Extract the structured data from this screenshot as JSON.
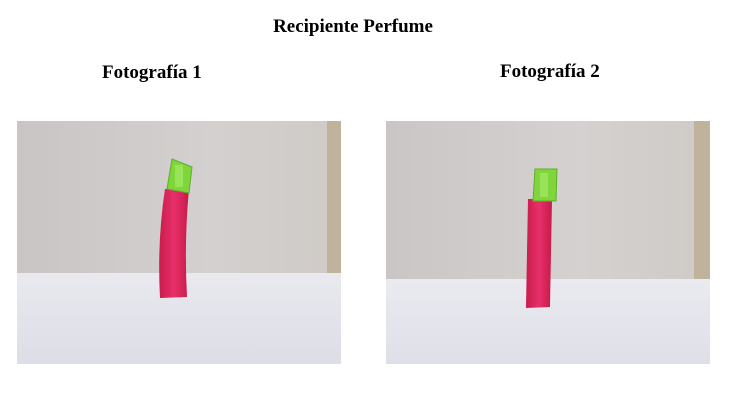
{
  "document": {
    "title": "Recipiente Perfume",
    "photos": [
      {
        "caption": "Fotografía 1",
        "subject": "perfume-bottle",
        "colors": {
          "body": "#e0245a",
          "cap": "#7fd63a",
          "wall": "#cfcccb",
          "floor": "#e6e7ee"
        }
      },
      {
        "caption": "Fotografía 2",
        "subject": "perfume-bottle",
        "colors": {
          "body": "#e0245a",
          "cap": "#7fd63a",
          "wall": "#cfcccb",
          "floor": "#e6e7ee"
        }
      }
    ]
  }
}
